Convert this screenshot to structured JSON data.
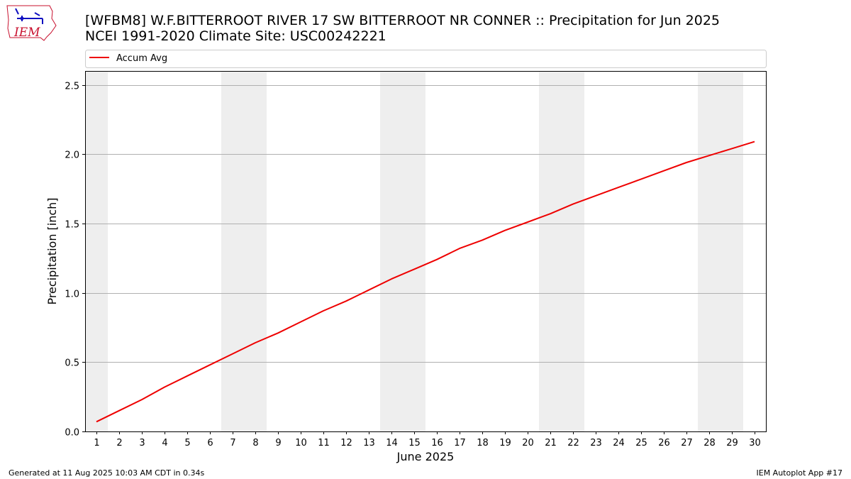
{
  "logo": {
    "text": "IEM"
  },
  "header": {
    "title_line1": "[WFBM8] W.F.BITTERROOT RIVER 17 SW BITTERROOT NR CONNER :: Precipitation for Jun 2025",
    "title_line2": "NCEI 1991-2020 Climate Site: USC00242221"
  },
  "footer": {
    "generated": "Generated at 11 Aug 2025 10:03 AM CDT in 0.34s",
    "app": "IEM Autoplot App #17"
  },
  "colors": {
    "line": "#ee0000",
    "weekend_shade": "#eeeeee",
    "grid": "#b0b0b0"
  },
  "chart_data": {
    "type": "line",
    "xlabel": "June 2025",
    "ylabel": "Precipitation [inch]",
    "xlim": [
      0.5,
      30.5
    ],
    "ylim": [
      0,
      2.6
    ],
    "grid": "y-major",
    "legend_placement": "top, above plot",
    "x": [
      1,
      2,
      3,
      4,
      5,
      6,
      7,
      8,
      9,
      10,
      11,
      12,
      13,
      14,
      15,
      16,
      17,
      18,
      19,
      20,
      21,
      22,
      23,
      24,
      25,
      26,
      27,
      28,
      29,
      30
    ],
    "x_tick_labels": [
      "1",
      "2",
      "3",
      "4",
      "5",
      "6",
      "7",
      "8",
      "9",
      "10",
      "11",
      "12",
      "13",
      "14",
      "15",
      "16",
      "17",
      "18",
      "19",
      "20",
      "21",
      "22",
      "23",
      "24",
      "25",
      "26",
      "27",
      "28",
      "29",
      "30"
    ],
    "y_ticks": [
      0.0,
      0.5,
      1.0,
      1.5,
      2.0,
      2.5
    ],
    "y_tick_labels": [
      "0.0",
      "0.5",
      "1.0",
      "1.5",
      "2.0",
      "2.5"
    ],
    "weekend_shading": [
      [
        0.5,
        1.5
      ],
      [
        6.5,
        8.5
      ],
      [
        13.5,
        15.5
      ],
      [
        20.5,
        22.5
      ],
      [
        27.5,
        29.5
      ]
    ],
    "series": [
      {
        "name": "Accum Avg",
        "color": "#ee0000",
        "values": [
          0.07,
          0.15,
          0.23,
          0.32,
          0.4,
          0.48,
          0.56,
          0.64,
          0.71,
          0.79,
          0.87,
          0.94,
          1.02,
          1.1,
          1.17,
          1.24,
          1.32,
          1.38,
          1.45,
          1.51,
          1.57,
          1.64,
          1.7,
          1.76,
          1.82,
          1.88,
          1.94,
          1.99,
          2.04,
          2.09
        ]
      }
    ]
  }
}
